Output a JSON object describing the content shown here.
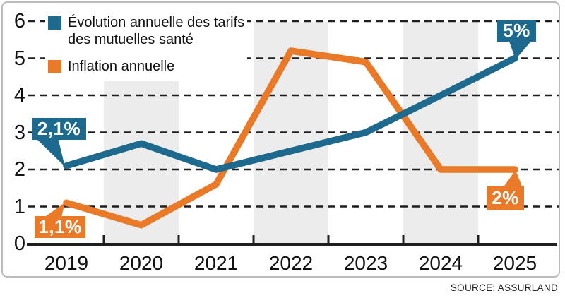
{
  "legend": {
    "items": [
      {
        "label_lines": [
          "Évolution annuelle des tarifs",
          "des mutuelles santé"
        ],
        "color": "#1d6a8e"
      },
      {
        "label_lines": [
          "Inflation annuelle"
        ],
        "color": "#ea7a28"
      }
    ]
  },
  "chart_data": {
    "type": "line",
    "categories": [
      "2019",
      "2020",
      "2021",
      "2022",
      "2023",
      "2024",
      "2025"
    ],
    "y_ticks": [
      "6",
      "5",
      "4",
      "3",
      "2",
      "1",
      "0"
    ],
    "ylim": [
      0,
      6
    ],
    "grid": "horizontal-dashed-black",
    "background_bands_years": [
      "2020",
      "2022",
      "2024"
    ],
    "band_color": "#ececec",
    "legend_position": "top-left",
    "series": [
      {
        "name": "Évolution annuelle des tarifs des mutuelles santé",
        "color": "#1d6a8e",
        "values": [
          2.1,
          2.7,
          2.0,
          2.5,
          3.0,
          4.0,
          5.0
        ]
      },
      {
        "name": "Inflation annuelle",
        "color": "#ea7a28",
        "values": [
          1.1,
          0.5,
          1.6,
          5.2,
          4.9,
          2.0,
          2.0
        ]
      }
    ],
    "callouts": [
      {
        "text": "2,1%",
        "series": 0,
        "year": "2019",
        "value": 2.1,
        "color": "#1d6a8e"
      },
      {
        "text": "1,1%",
        "series": 1,
        "year": "2019",
        "value": 1.1,
        "color": "#ea7a28"
      },
      {
        "text": "5%",
        "series": 0,
        "year": "2025",
        "value": 5.0,
        "color": "#1d6a8e"
      },
      {
        "text": "2%",
        "series": 1,
        "year": "2025",
        "value": 2.0,
        "color": "#ea7a28"
      }
    ]
  },
  "source": "SOURCE: ASSURLAND"
}
